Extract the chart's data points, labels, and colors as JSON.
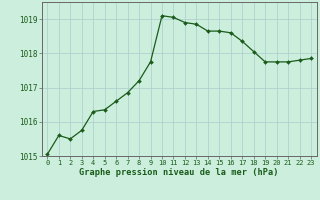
{
  "x": [
    0,
    1,
    2,
    3,
    4,
    5,
    6,
    7,
    8,
    9,
    10,
    11,
    12,
    13,
    14,
    15,
    16,
    17,
    18,
    19,
    20,
    21,
    22,
    23
  ],
  "y": [
    1015.05,
    1015.6,
    1015.5,
    1015.75,
    1016.3,
    1016.35,
    1016.6,
    1016.85,
    1017.2,
    1017.75,
    1019.1,
    1019.05,
    1018.9,
    1018.85,
    1018.65,
    1018.65,
    1018.6,
    1018.35,
    1018.05,
    1017.75,
    1017.75,
    1017.75,
    1017.8,
    1017.85
  ],
  "ylim": [
    1015,
    1019.5
  ],
  "yticks": [
    1015,
    1016,
    1017,
    1018,
    1019
  ],
  "xlim": [
    -0.5,
    23.5
  ],
  "line_color": "#1a5c1a",
  "marker_color": "#1a5c1a",
  "bg_color": "#cceedd",
  "grid_color": "#aacccc",
  "xlabel": "Graphe pression niveau de la mer (hPa)",
  "xlabel_color": "#1a5c1a",
  "tick_color": "#1a5c1a",
  "axis_color": "#666666",
  "tick_fontsize": 5.0,
  "ytick_fontsize": 5.5,
  "xlabel_fontsize": 6.2
}
